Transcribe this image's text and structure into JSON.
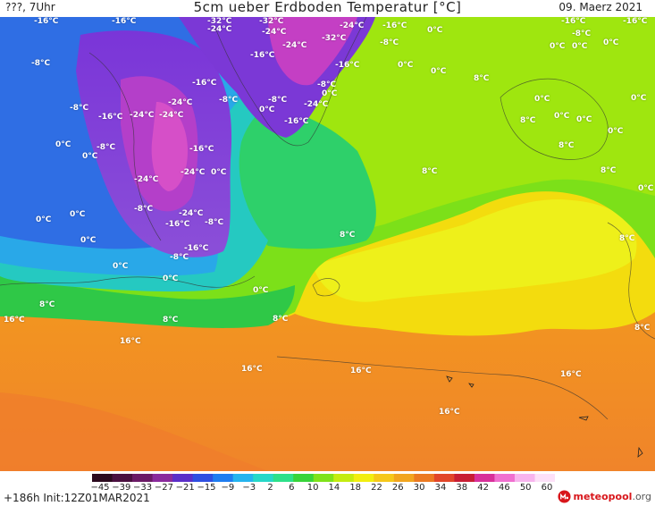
{
  "header": {
    "left": "???, 7Uhr",
    "title": "5cm ueber Erdboden Temperatur [°C]",
    "date": "09. Maerz 2021"
  },
  "map": {
    "labels": [
      "-16°C",
      "-8°C",
      "0°C",
      "8°C",
      "16°C",
      "-24°C",
      "-32°C"
    ]
  },
  "colorbar": {
    "ticks": [
      "−45",
      "−39",
      "−33",
      "−27",
      "−21",
      "−15",
      "−9",
      "−3",
      "2",
      "6",
      "10",
      "14",
      "18",
      "22",
      "26",
      "30",
      "34",
      "38",
      "42",
      "46",
      "50",
      "60"
    ],
    "colors": [
      "#2b0a1e",
      "#4a1040",
      "#6b1a66",
      "#8a2a9c",
      "#5a2fc8",
      "#2f4fe0",
      "#1f7df0",
      "#25b4ee",
      "#27d8c8",
      "#2ee08a",
      "#38d43a",
      "#7fe21a",
      "#c4ec10",
      "#f2ee10",
      "#f6c81a",
      "#f2a51f",
      "#ec7a22",
      "#e2462a",
      "#c81e34",
      "#d8309a",
      "#f070d0",
      "#f8b4ee",
      "#fde0f8"
    ]
  },
  "footer": {
    "init": "+186h Init:12Z01MAR2021",
    "brand_main": "meteopool",
    "brand_tld": ".org"
  }
}
